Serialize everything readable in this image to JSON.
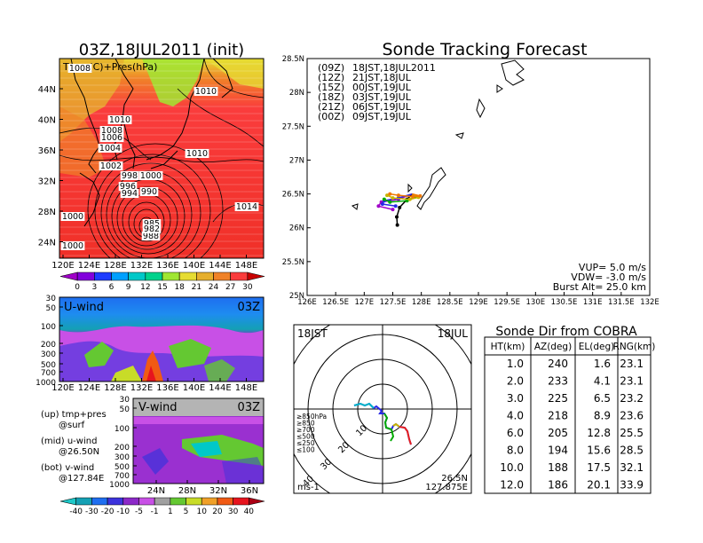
{
  "left": {
    "map": {
      "title": "03Z,18JUL2011 (init)",
      "label": "Temp(C)+Pres(hPa)",
      "lat_ticks": [
        "44N",
        "40N",
        "36N",
        "32N",
        "28N",
        "24N"
      ],
      "lon_ticks": [
        "120E",
        "124E",
        "128E",
        "132E",
        "136E",
        "140E",
        "144E",
        "148E"
      ],
      "pressure_labels": [
        "1008",
        "1010",
        "1010",
        "1008",
        "1006",
        "1004",
        "1010",
        "1002",
        "998",
        "1000",
        "996",
        "994",
        "990",
        "1000",
        "1014",
        "1000",
        "988",
        "985",
        "982"
      ],
      "colorbar": {
        "labels": [
          "0",
          "3",
          "6",
          "9",
          "12",
          "15",
          "18",
          "21",
          "24",
          "27",
          "30"
        ],
        "colors": [
          "#a000c8",
          "#8200dc",
          "#1e3cff",
          "#00a0ff",
          "#00c8c8",
          "#00d28c",
          "#a0e632",
          "#e6dc32",
          "#e6af2d",
          "#f08228",
          "#fa3c3c",
          "#c80000"
        ]
      }
    },
    "uwind": {
      "label": "U-wind",
      "time": "03Z",
      "p_ticks": [
        "30",
        "50",
        "100",
        "200",
        "300",
        "500",
        "700",
        "1000"
      ],
      "lon_ticks": [
        "120E",
        "124E",
        "128E",
        "132E",
        "136E",
        "140E",
        "144E",
        "148E"
      ]
    },
    "vwind": {
      "label": "V-wind",
      "time": "03Z",
      "lat_ticks": [
        "24N",
        "28N",
        "32N",
        "36N"
      ],
      "p_ticks": [
        "30",
        "50",
        "100",
        "200",
        "300",
        "500",
        "700",
        "1000"
      ]
    },
    "legend": {
      "line1a": "(up) tmp+pres",
      "line1b": "@surf",
      "line2a": "(mid) u-wind",
      "line2b": "@26.50N",
      "line3a": "(bot) v-wind",
      "line3b": "@127.84E"
    },
    "wind_colorbar": {
      "labels": [
        "-40",
        "-30",
        "-20",
        "-10",
        "-5",
        "-1",
        "1",
        "5",
        "10",
        "20",
        "30",
        "40"
      ],
      "colors": [
        "#1ec8c8",
        "#14a0b4",
        "#1e6ef0",
        "#3c32dc",
        "#8c28c8",
        "#c850e6",
        "#a0a0a0",
        "#64c832",
        "#c8dc28",
        "#f0a028",
        "#f05a14",
        "#e6141e",
        "#aa0014"
      ]
    }
  },
  "track": {
    "title": "Sonde Tracking Forecast",
    "lat_ticks": [
      "28.5N",
      "28N",
      "27.5N",
      "27N",
      "26.5N",
      "26N",
      "25.5N",
      "25N"
    ],
    "lon_ticks": [
      "126E",
      "126.5E",
      "127E",
      "127.5E",
      "128E",
      "128.5E",
      "129E",
      "129.5E",
      "130E",
      "130.5E",
      "131E",
      "131.5E",
      "132E"
    ],
    "legend": [
      {
        "key": "(09Z)",
        "value": "18JST,18JUL2011",
        "color": "#000000"
      },
      {
        "key": "(12Z)",
        "value": "21JST,18JUL",
        "color": "#a000c8"
      },
      {
        "key": "(15Z)",
        "value": "00JST,19JUL",
        "color": "#2828e6"
      },
      {
        "key": "(18Z)",
        "value": "03JST,19JUL",
        "color": "#00aa00"
      },
      {
        "key": "(21Z)",
        "value": "06JST,19JUL",
        "color": "#c8b400"
      },
      {
        "key": "(00Z)",
        "value": "09JST,19JUL",
        "color": "#f07800"
      }
    ],
    "params": [
      "VUP= 5.0 m/s",
      "VDW= -3.0 m/s",
      "Burst Alt= 25.0 km"
    ]
  },
  "polar": {
    "left_label": "18JST",
    "right_label": "18JUL",
    "unit": "ms-1",
    "location_lat": "26.5N",
    "location_lon": "127.875E",
    "ring_labels": [
      "10",
      "20",
      "30",
      "40"
    ],
    "level_legend": [
      {
        "text": "≥850hPa",
        "color": "#e61e1e"
      },
      {
        "text": "≥850",
        "color": "#f07800"
      },
      {
        "text": "≥700",
        "color": "#c8b400"
      },
      {
        "text": "≤500",
        "color": "#00aa00"
      },
      {
        "text": "≤250",
        "color": "#00b4c8"
      },
      {
        "text": "≤100",
        "color": "#2828e6"
      }
    ]
  },
  "table": {
    "title": "Sonde Dir from COBRA",
    "headers": [
      "HT(km)",
      "AZ(deg)",
      "EL(deg)",
      "RNG(km)"
    ],
    "rows": [
      [
        "1.0",
        "240",
        "1.6",
        "23.1"
      ],
      [
        "2.0",
        "233",
        "4.1",
        "23.1"
      ],
      [
        "3.0",
        "225",
        "6.5",
        "23.2"
      ],
      [
        "4.0",
        "218",
        "8.9",
        "23.6"
      ],
      [
        "6.0",
        "205",
        "12.8",
        "25.5"
      ],
      [
        "8.0",
        "194",
        "15.6",
        "28.5"
      ],
      [
        "10.0",
        "188",
        "17.5",
        "32.1"
      ],
      [
        "12.0",
        "186",
        "20.1",
        "33.9"
      ]
    ]
  },
  "chart_data": {
    "type": "table",
    "title": "Sonde Dir from COBRA",
    "columns": [
      "HT(km)",
      "AZ(deg)",
      "EL(deg)",
      "RNG(km)"
    ],
    "rows": [
      [
        1.0,
        240,
        1.6,
        23.1
      ],
      [
        2.0,
        233,
        4.1,
        23.1
      ],
      [
        3.0,
        225,
        6.5,
        23.2
      ],
      [
        4.0,
        218,
        8.9,
        23.6
      ],
      [
        6.0,
        205,
        12.8,
        25.5
      ],
      [
        8.0,
        194,
        15.6,
        28.5
      ],
      [
        10.0,
        188,
        17.5,
        32.1
      ],
      [
        12.0,
        186,
        20.1,
        33.9
      ]
    ],
    "tracks": [
      {
        "name": "(09Z)",
        "lon": [
          127.84,
          127.75,
          127.62,
          127.57,
          127.58
        ],
        "lat": [
          26.5,
          26.42,
          26.3,
          26.16,
          26.04
        ]
      },
      {
        "name": "(12Z)",
        "lon": [
          127.84,
          127.6,
          127.3,
          127.25,
          127.5
        ],
        "lat": [
          26.5,
          26.42,
          26.38,
          26.32,
          26.27
        ]
      },
      {
        "name": "(15Z)",
        "lon": [
          127.84,
          127.6,
          127.35,
          127.32,
          127.55
        ],
        "lat": [
          26.5,
          26.44,
          26.4,
          26.35,
          26.32
        ]
      },
      {
        "name": "(18Z)",
        "lon": [
          127.84,
          127.9,
          127.75,
          127.45,
          127.35
        ],
        "lat": [
          26.5,
          26.46,
          26.4,
          26.38,
          26.42
        ]
      },
      {
        "name": "(21Z)",
        "lon": [
          127.84,
          127.95,
          127.8,
          127.5,
          127.4
        ],
        "lat": [
          26.5,
          26.45,
          26.42,
          26.44,
          26.48
        ]
      },
      {
        "name": "(00Z)",
        "lon": [
          127.84,
          127.98,
          127.85,
          127.6,
          127.45
        ],
        "lat": [
          26.5,
          26.47,
          26.46,
          26.48,
          26.5
        ]
      }
    ]
  }
}
